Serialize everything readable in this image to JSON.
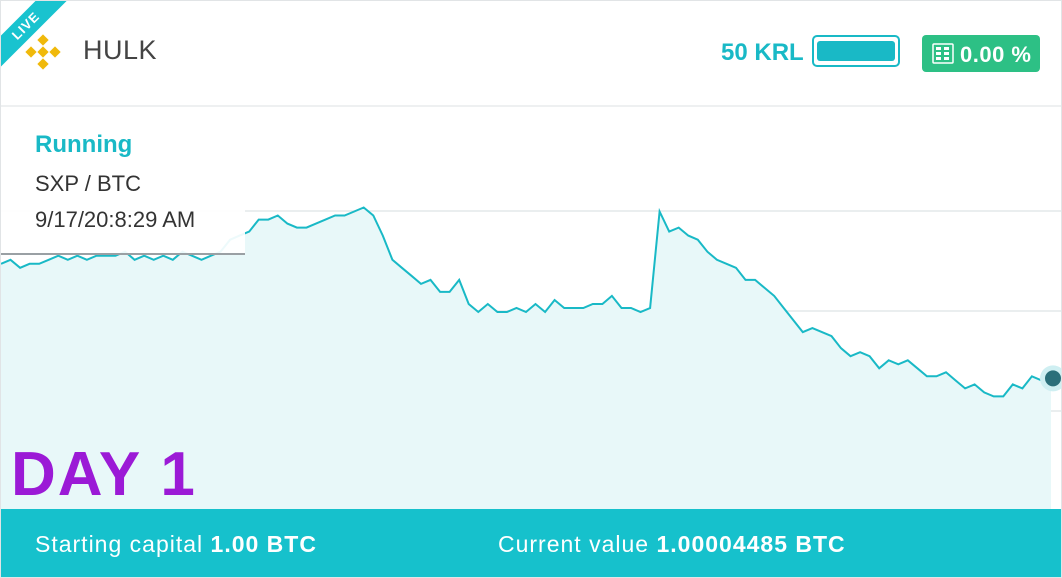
{
  "header": {
    "live_badge": "LIVE",
    "bot_name": "HULK",
    "krl_value": "50 KRL",
    "profit_percent": "0.00 %"
  },
  "info": {
    "status": "Running",
    "pair": "SXP / BTC",
    "timestamp": "9/17/20:8:29 AM"
  },
  "overlay": {
    "day_label": "DAY 1"
  },
  "footer": {
    "starting_capital_label": "Starting capital",
    "starting_capital_value": "1.00 BTC",
    "current_value_label": "Current value",
    "current_value_value": "1.00004485 BTC"
  },
  "colors": {
    "accent": "#19b9c6",
    "footer_bg": "#16c1cc",
    "profit_badge": "#2dc085",
    "day_label": "#9b1ad6",
    "logo": "#f0b90b"
  },
  "icons": {
    "logo": "binance-logo-icon",
    "profit": "chart-icon",
    "marker": "current-point-icon"
  },
  "chart_data": {
    "type": "area",
    "ylim": [
      0,
      100
    ],
    "grid": true,
    "values": [
      61,
      62,
      60,
      61,
      61,
      62,
      63,
      62,
      63,
      62,
      63,
      63,
      63,
      64,
      62,
      63,
      62,
      63,
      62,
      64,
      63,
      62,
      63,
      64,
      67,
      68,
      69,
      72,
      72,
      73,
      71,
      70,
      70,
      71,
      72,
      73,
      73,
      74,
      75,
      73,
      68,
      62,
      60,
      58,
      56,
      57,
      54,
      54,
      57,
      51,
      49,
      51,
      49,
      49,
      50,
      49,
      51,
      49,
      52,
      50,
      50,
      50,
      51,
      51,
      53,
      50,
      50,
      49,
      50,
      74,
      69,
      70,
      68,
      67,
      64,
      62,
      61,
      60,
      57,
      57,
      55,
      53,
      50,
      47,
      44,
      45,
      44,
      43,
      40,
      38,
      39,
      38,
      35,
      37,
      36,
      37,
      35,
      33,
      33,
      34,
      32,
      30,
      31,
      29,
      28,
      28,
      31,
      30,
      33,
      32,
      32
    ]
  }
}
